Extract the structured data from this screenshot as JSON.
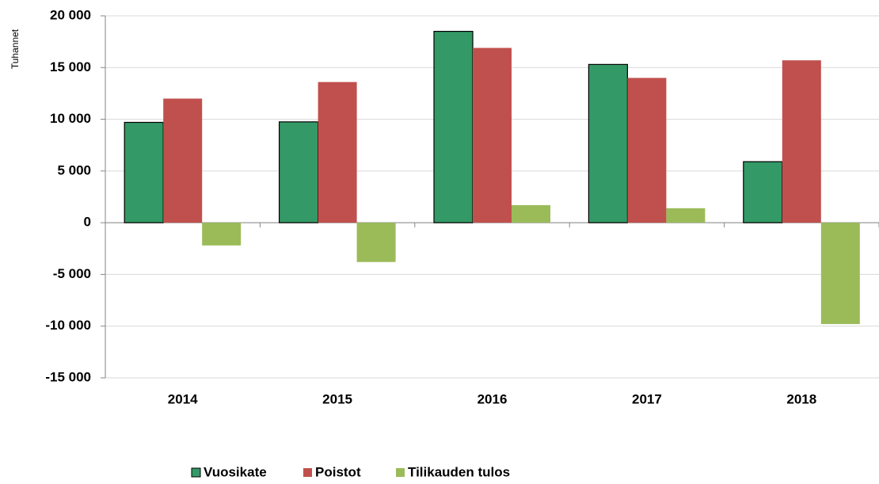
{
  "chart_data": {
    "type": "bar",
    "y_label": "Tuhannet",
    "categories": [
      "2014",
      "2015",
      "2016",
      "2017",
      "2018"
    ],
    "series": [
      {
        "name": "Vuosikate",
        "color": "#339966",
        "values": [
          9700,
          9750,
          18500,
          15300,
          5900
        ]
      },
      {
        "name": "Poistot",
        "color": "#c0504d",
        "values": [
          12000,
          13600,
          16900,
          14000,
          15700
        ]
      },
      {
        "name": "Tilikauden tulos",
        "color": "#9bbb59",
        "values": [
          -2200,
          -3800,
          1700,
          1400,
          -9800
        ]
      }
    ],
    "ylim": [
      -15000,
      20000
    ],
    "yticks": [
      {
        "value": -15000,
        "label": "-15 000"
      },
      {
        "value": -10000,
        "label": "-10 000"
      },
      {
        "value": -5000,
        "label": "-5 000"
      },
      0,
      {
        "value": 5000,
        "label": "5 000"
      },
      {
        "value": 10000,
        "label": "10 000"
      },
      {
        "value": 15000,
        "label": "15 000"
      },
      {
        "value": 20000,
        "label": "20 000"
      }
    ],
    "grid": true,
    "legend": "bottom"
  }
}
